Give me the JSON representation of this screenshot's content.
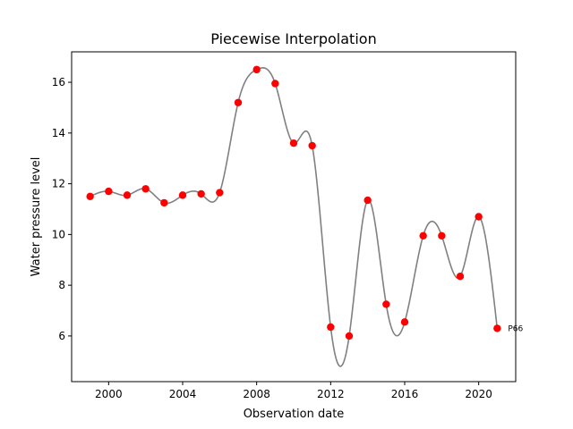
{
  "chart_data": {
    "type": "line",
    "title": "Piecewise Interpolation",
    "xlabel": "Observation date",
    "ylabel": "Water pressure level",
    "xlim": [
      1998.0,
      2022.0
    ],
    "ylim": [
      4.2,
      17.2
    ],
    "x_ticks": [
      2000,
      2004,
      2008,
      2012,
      2016,
      2020
    ],
    "y_ticks": [
      6,
      8,
      10,
      12,
      14,
      16
    ],
    "grid": false,
    "colors": {
      "line": "#808080",
      "points": "#ff0000"
    },
    "series": [
      {
        "x": [
          1999,
          2000,
          2001,
          2002,
          2003,
          2004,
          2005,
          2006,
          2007,
          2008,
          2009,
          2010,
          2011,
          2012,
          2013,
          2014,
          2015,
          2016,
          2017,
          2018,
          2019,
          2020,
          2021
        ],
        "values": [
          11.5,
          11.7,
          11.55,
          11.8,
          11.25,
          11.55,
          11.6,
          11.65,
          15.2,
          16.5,
          15.95,
          13.6,
          13.5,
          6.35,
          6.0,
          11.35,
          7.25,
          6.55,
          9.95,
          9.95,
          8.35,
          10.7,
          6.3
        ]
      }
    ],
    "annotations": [
      {
        "text": "P66",
        "x": 2021,
        "y": 6.3
      }
    ]
  }
}
